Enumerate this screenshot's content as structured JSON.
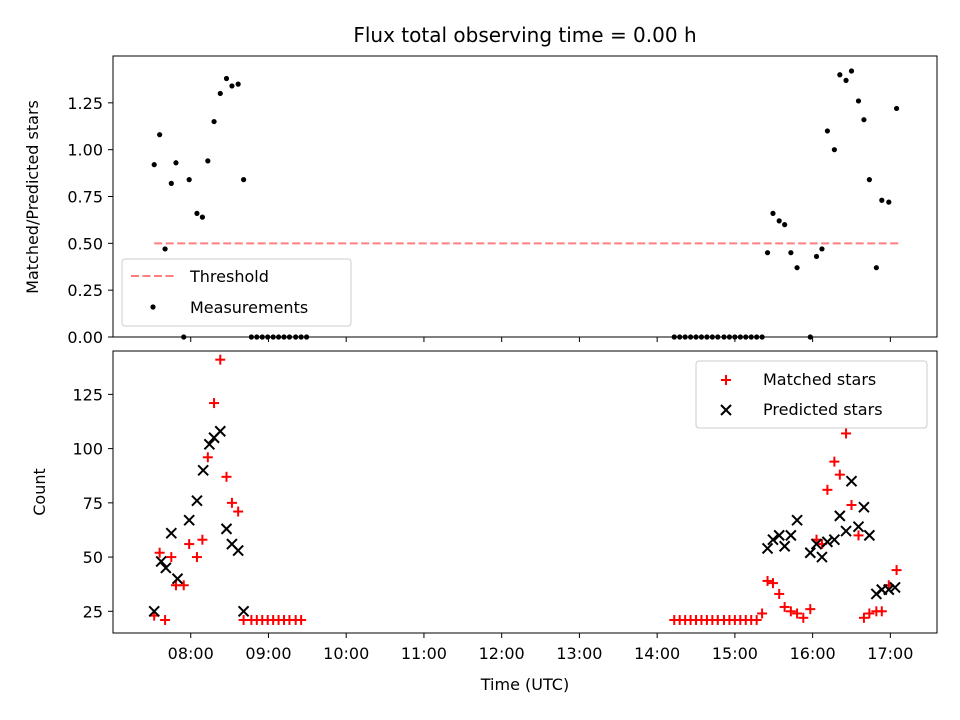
{
  "chart_data": {
    "title": "Flux total observing time = 0.00 h",
    "xlabel": "Time (UTC)",
    "xlim_hours": [
      7.0,
      17.6
    ],
    "xticks": [
      {
        "h": 8,
        "label": "08:00"
      },
      {
        "h": 9,
        "label": "09:00"
      },
      {
        "h": 10,
        "label": "10:00"
      },
      {
        "h": 11,
        "label": "11:00"
      },
      {
        "h": 12,
        "label": "12:00"
      },
      {
        "h": 13,
        "label": "13:00"
      },
      {
        "h": 14,
        "label": "14:00"
      },
      {
        "h": 15,
        "label": "15:00"
      },
      {
        "h": 16,
        "label": "16:00"
      },
      {
        "h": 17,
        "label": "17:00"
      }
    ],
    "top_panel": {
      "type": "scatter",
      "ylabel": "Matched/Predicted stars",
      "ylim": [
        0,
        1.5
      ],
      "yticks": [
        "0.00",
        "0.25",
        "0.50",
        "0.75",
        "1.00",
        "1.25"
      ],
      "threshold": {
        "label": "Threshold",
        "value": 0.5,
        "x_range": [
          7.53,
          17.13
        ],
        "color": "#ff7f7f"
      },
      "measurements": {
        "label": "Measurements",
        "color": "#000000",
        "points": [
          [
            7.53,
            0.92
          ],
          [
            7.6,
            1.08
          ],
          [
            7.67,
            0.47
          ],
          [
            7.75,
            0.82
          ],
          [
            7.81,
            0.93
          ],
          [
            7.91,
            0.0
          ],
          [
            7.98,
            0.84
          ],
          [
            8.08,
            0.66
          ],
          [
            8.15,
            0.64
          ],
          [
            8.22,
            0.94
          ],
          [
            8.3,
            1.15
          ],
          [
            8.38,
            1.3
          ],
          [
            8.46,
            1.38
          ],
          [
            8.53,
            1.34
          ],
          [
            8.61,
            1.35
          ],
          [
            8.68,
            0.84
          ],
          [
            8.78,
            0.0
          ],
          [
            8.85,
            0.0
          ],
          [
            8.92,
            0.0
          ],
          [
            8.99,
            0.0
          ],
          [
            9.06,
            0.0
          ],
          [
            9.13,
            0.0
          ],
          [
            9.2,
            0.0
          ],
          [
            9.27,
            0.0
          ],
          [
            9.35,
            0.0
          ],
          [
            9.42,
            0.0
          ],
          [
            9.49,
            0.0
          ],
          [
            14.22,
            0.0
          ],
          [
            14.29,
            0.0
          ],
          [
            14.36,
            0.0
          ],
          [
            14.43,
            0.0
          ],
          [
            14.5,
            0.0
          ],
          [
            14.57,
            0.0
          ],
          [
            14.64,
            0.0
          ],
          [
            14.71,
            0.0
          ],
          [
            14.78,
            0.0
          ],
          [
            14.86,
            0.0
          ],
          [
            14.93,
            0.0
          ],
          [
            15.0,
            0.0
          ],
          [
            15.07,
            0.0
          ],
          [
            15.14,
            0.0
          ],
          [
            15.21,
            0.0
          ],
          [
            15.28,
            0.0
          ],
          [
            15.35,
            0.0
          ],
          [
            15.42,
            0.45
          ],
          [
            15.49,
            0.66
          ],
          [
            15.57,
            0.62
          ],
          [
            15.64,
            0.6
          ],
          [
            15.72,
            0.45
          ],
          [
            15.8,
            0.37
          ],
          [
            15.97,
            0.0
          ],
          [
            16.05,
            0.43
          ],
          [
            16.12,
            0.47
          ],
          [
            16.19,
            1.1
          ],
          [
            16.28,
            1.0
          ],
          [
            16.35,
            1.4
          ],
          [
            16.43,
            1.37
          ],
          [
            16.5,
            1.42
          ],
          [
            16.59,
            1.26
          ],
          [
            16.66,
            1.16
          ],
          [
            16.73,
            0.84
          ],
          [
            16.82,
            0.37
          ],
          [
            16.89,
            0.73
          ],
          [
            16.98,
            0.72
          ],
          [
            17.08,
            1.22
          ]
        ]
      },
      "legend": [
        "Threshold",
        "Measurements"
      ]
    },
    "bottom_panel": {
      "type": "scatter",
      "ylabel": "Count",
      "ylim": [
        15,
        145
      ],
      "yticks": [
        "25",
        "50",
        "75",
        "100",
        "125"
      ],
      "series": [
        {
          "name": "Matched stars",
          "marker": "+",
          "color": "#ff0000",
          "points": [
            [
              7.53,
              23
            ],
            [
              7.6,
              52
            ],
            [
              7.67,
              21
            ],
            [
              7.75,
              50
            ],
            [
              7.81,
              37
            ],
            [
              7.91,
              37
            ],
            [
              7.98,
              56
            ],
            [
              8.08,
              50
            ],
            [
              8.15,
              58
            ],
            [
              8.22,
              96
            ],
            [
              8.3,
              121
            ],
            [
              8.38,
              141
            ],
            [
              8.46,
              87
            ],
            [
              8.53,
              75
            ],
            [
              8.61,
              71
            ],
            [
              8.68,
              21
            ],
            [
              8.78,
              21
            ],
            [
              8.85,
              21
            ],
            [
              8.92,
              21
            ],
            [
              8.99,
              21
            ],
            [
              9.06,
              21
            ],
            [
              9.13,
              21
            ],
            [
              9.2,
              21
            ],
            [
              9.27,
              21
            ],
            [
              9.35,
              21
            ],
            [
              9.42,
              21
            ],
            [
              14.22,
              21
            ],
            [
              14.29,
              21
            ],
            [
              14.36,
              21
            ],
            [
              14.43,
              21
            ],
            [
              14.5,
              21
            ],
            [
              14.57,
              21
            ],
            [
              14.64,
              21
            ],
            [
              14.71,
              21
            ],
            [
              14.78,
              21
            ],
            [
              14.86,
              21
            ],
            [
              14.93,
              21
            ],
            [
              15.0,
              21
            ],
            [
              15.07,
              21
            ],
            [
              15.14,
              21
            ],
            [
              15.21,
              21
            ],
            [
              15.28,
              21
            ],
            [
              15.35,
              24
            ],
            [
              15.42,
              39
            ],
            [
              15.49,
              38
            ],
            [
              15.57,
              33
            ],
            [
              15.64,
              27
            ],
            [
              15.72,
              25
            ],
            [
              15.8,
              24
            ],
            [
              15.88,
              22
            ],
            [
              15.97,
              26
            ],
            [
              16.05,
              58
            ],
            [
              16.12,
              56
            ],
            [
              16.19,
              81
            ],
            [
              16.28,
              94
            ],
            [
              16.35,
              88
            ],
            [
              16.43,
              107
            ],
            [
              16.5,
              74
            ],
            [
              16.59,
              60
            ],
            [
              16.66,
              22
            ],
            [
              16.73,
              24
            ],
            [
              16.82,
              25
            ],
            [
              16.89,
              25
            ],
            [
              16.98,
              37
            ],
            [
              17.08,
              44
            ]
          ]
        },
        {
          "name": "Predicted stars",
          "marker": "x",
          "color": "#000000",
          "points": [
            [
              7.53,
              25
            ],
            [
              7.62,
              48
            ],
            [
              7.68,
              45
            ],
            [
              7.75,
              61
            ],
            [
              7.83,
              40
            ],
            [
              7.98,
              67
            ],
            [
              8.08,
              76
            ],
            [
              8.16,
              90
            ],
            [
              8.24,
              102
            ],
            [
              8.3,
              105
            ],
            [
              8.38,
              108
            ],
            [
              8.46,
              63
            ],
            [
              8.53,
              56
            ],
            [
              8.61,
              53
            ],
            [
              8.68,
              25
            ],
            [
              15.42,
              54
            ],
            [
              15.49,
              58
            ],
            [
              15.57,
              60
            ],
            [
              15.64,
              55
            ],
            [
              15.72,
              60
            ],
            [
              15.8,
              67
            ],
            [
              15.97,
              52
            ],
            [
              16.05,
              56
            ],
            [
              16.12,
              50
            ],
            [
              16.19,
              57
            ],
            [
              16.28,
              58
            ],
            [
              16.35,
              69
            ],
            [
              16.43,
              62
            ],
            [
              16.5,
              85
            ],
            [
              16.59,
              64
            ],
            [
              16.66,
              73
            ],
            [
              16.73,
              60
            ],
            [
              16.82,
              33
            ],
            [
              16.89,
              35
            ],
            [
              16.98,
              35
            ],
            [
              17.06,
              36
            ]
          ]
        }
      ],
      "legend": [
        "Matched stars",
        "Predicted stars"
      ]
    }
  }
}
